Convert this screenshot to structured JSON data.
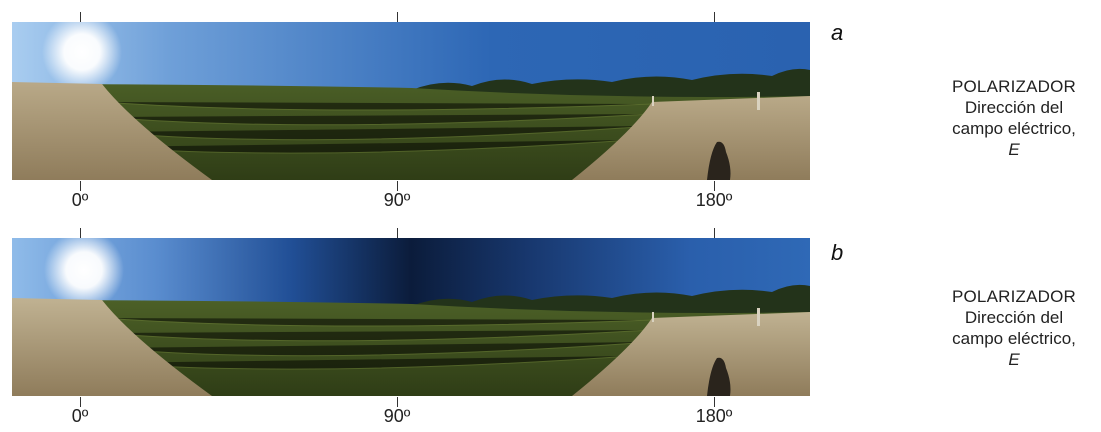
{
  "panels": [
    {
      "letter": "a",
      "ticks": [
        "0º",
        "90º",
        "180º"
      ],
      "caption": {
        "title": "POLARIZADOR",
        "line1": "Dirección del",
        "line2": "campo eléctrico,",
        "symbol": "E"
      }
    },
    {
      "letter": "b",
      "ticks": [
        "0º",
        "90º",
        "180º"
      ],
      "caption": {
        "title": "POLARIZADOR",
        "line1": "Dirección del",
        "line2": "campo eléctrico,",
        "symbol": "E"
      }
    }
  ],
  "colors": {
    "sky_light": "#7fb0e6",
    "sky_deep": "#1f4f99",
    "sky_dark_band": "#0c1f3f",
    "field_green": "#3c4e1e",
    "dry_grass": "#a89776"
  }
}
